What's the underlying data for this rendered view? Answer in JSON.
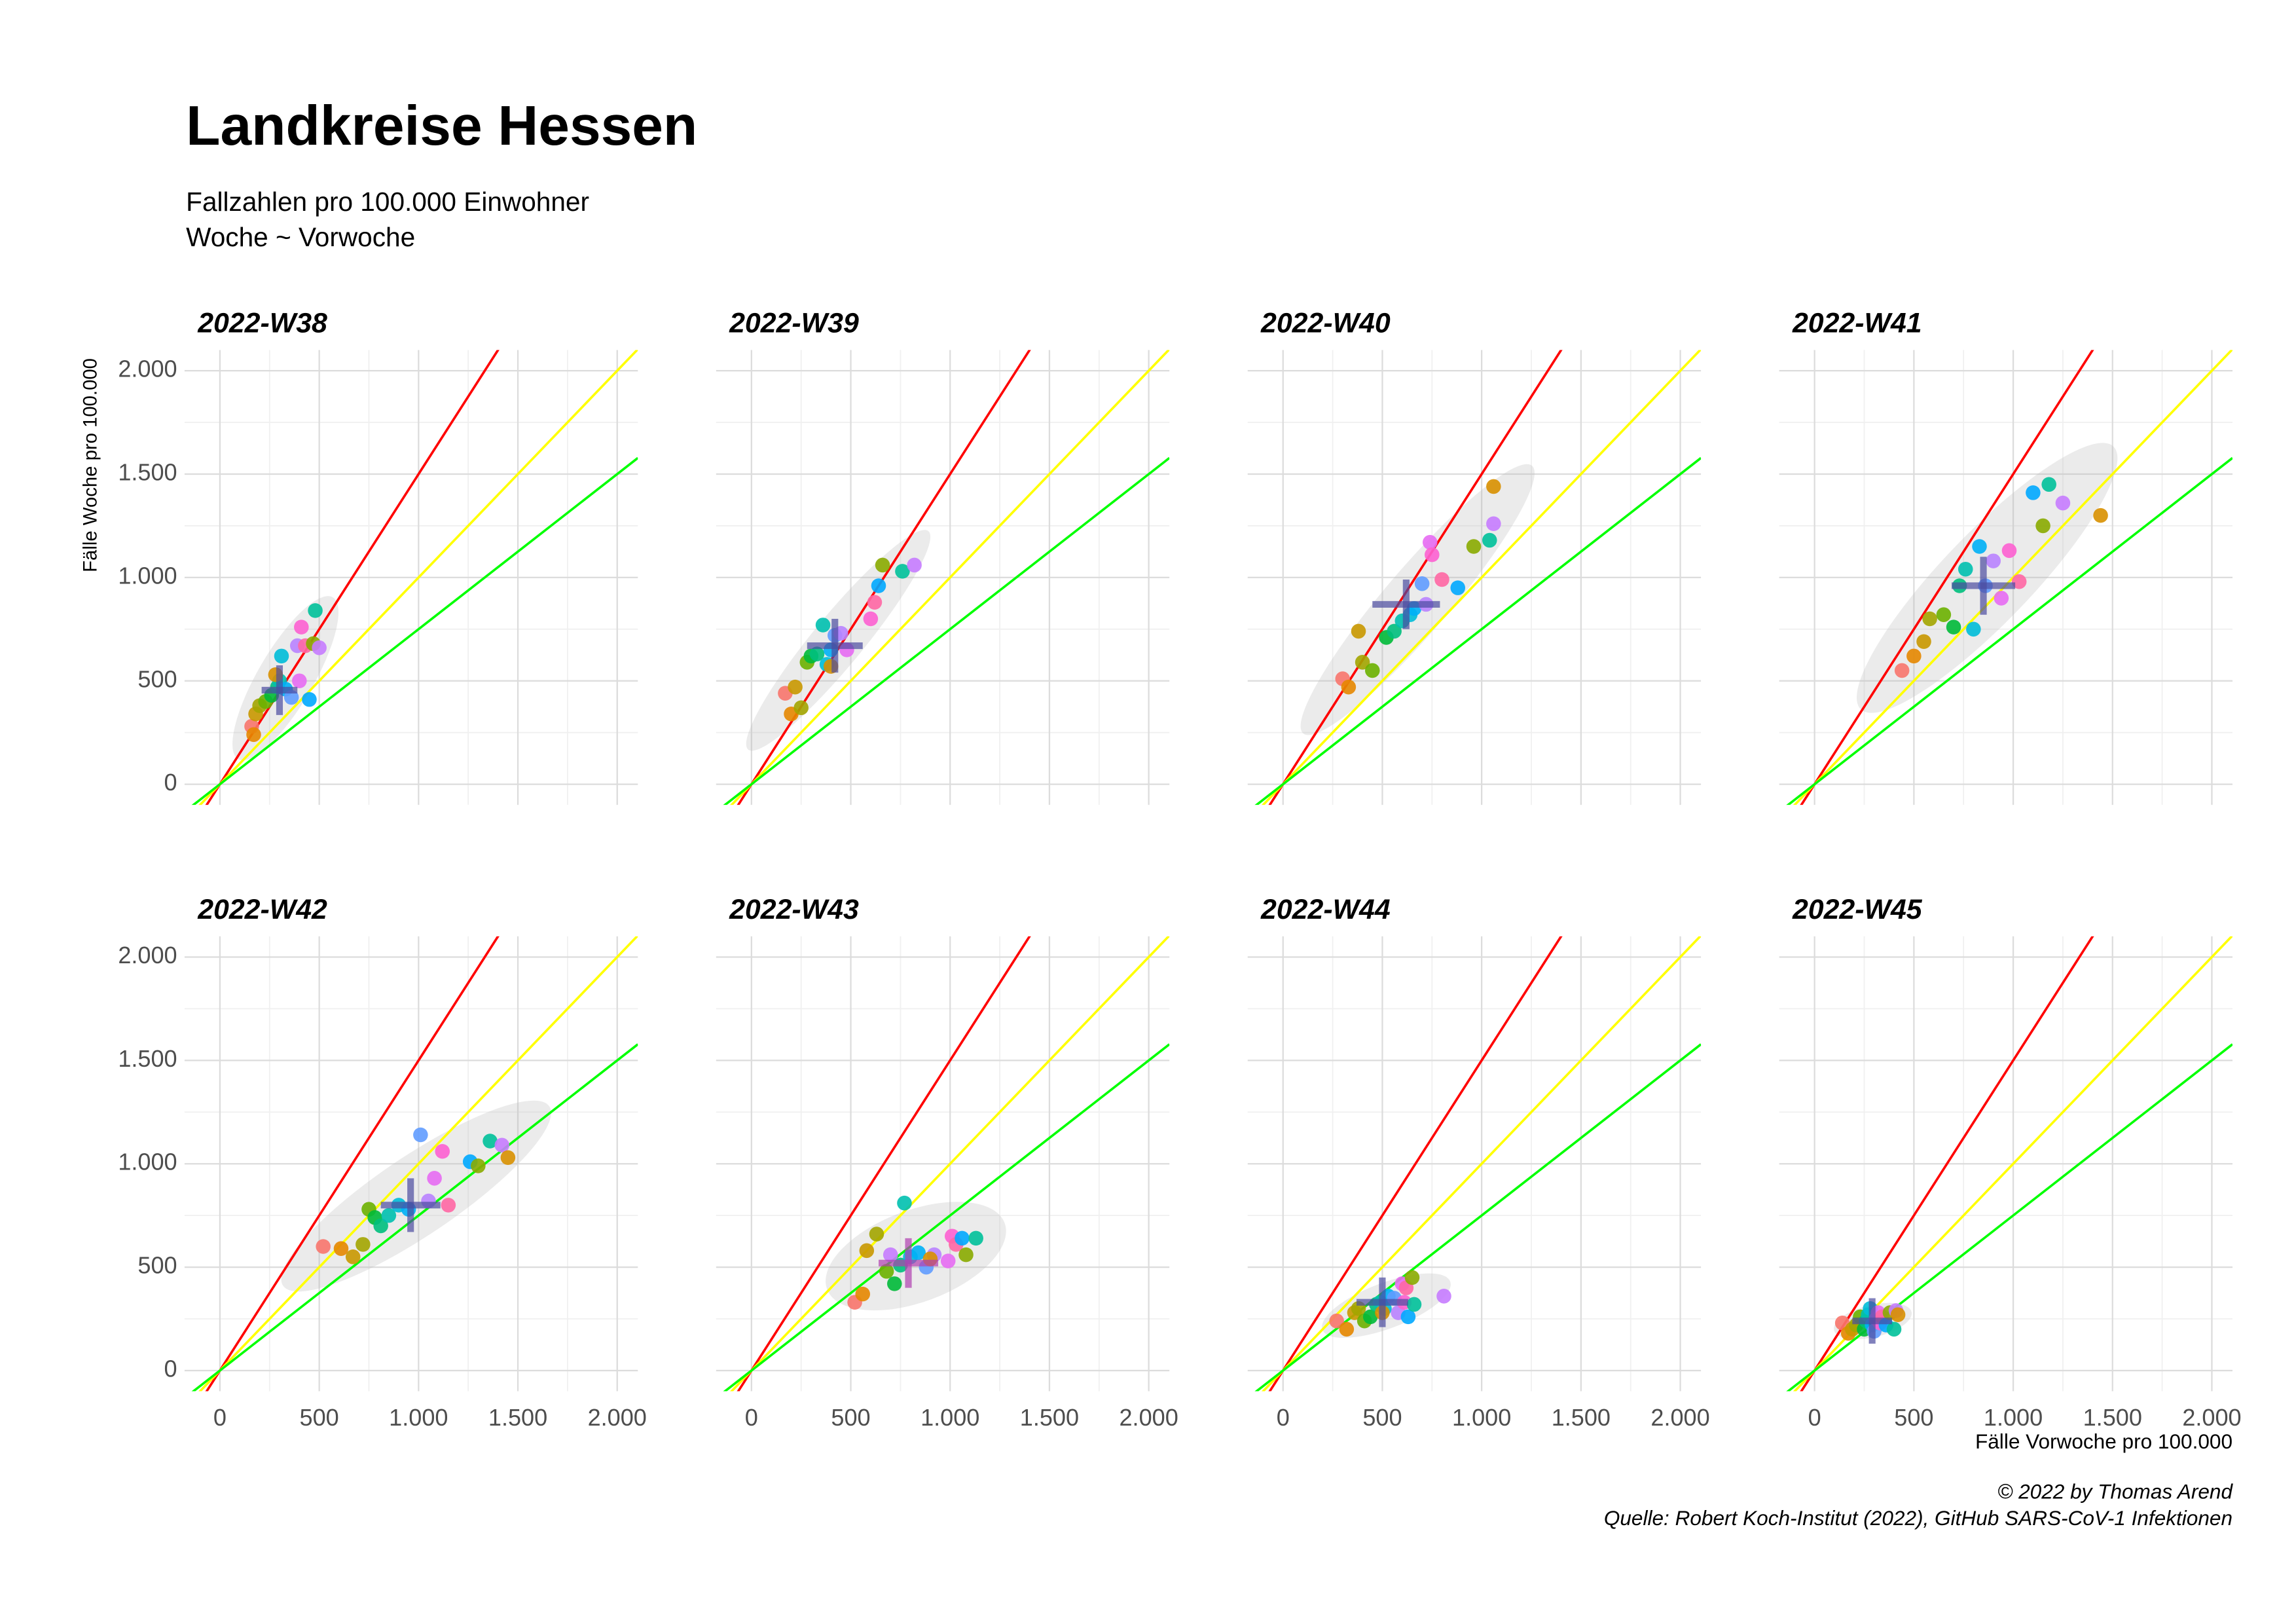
{
  "title": "Landkreise Hessen",
  "subtitle": [
    "Fallzahlen pro 100.000 Einwohner",
    "Woche ~ Vorwoche"
  ],
  "x_label": "Fälle Vorwoche pro 100.000",
  "y_label": "Fälle Woche pro 100.000",
  "caption": [
    "© 2022 by Thomas Arend",
    "Quelle: Robert Koch-Institut (2022), GitHub SARS-CoV-1 Infektionen"
  ],
  "point_colors": [
    "#F8766D",
    "#E58700",
    "#C99800",
    "#A3A500",
    "#6BB100",
    "#00BA38",
    "#00BF7D",
    "#00C0AF",
    "#00BCD8",
    "#00B0F6",
    "#619CFF",
    "#B983FF",
    "#E76BF3",
    "#FD61D1",
    "#FF67A4",
    "#00A9FF",
    "#8AAB00",
    "#00C19A",
    "#C77CFF",
    "#D89000"
  ],
  "chart_data": [
    {
      "type": "scatter",
      "title": "2022-W38",
      "xlim": [
        -178,
        2104
      ],
      "ylim": [
        -100,
        2100
      ],
      "xticks": [
        0,
        500,
        {
          "value": 1000,
          "label": "1.000"
        },
        {
          "value": 1500,
          "label": "1.500"
        },
        {
          "value": 2000,
          "label": "2.000"
        }
      ],
      "yticks": [
        0,
        500,
        {
          "value": 1000,
          "label": "1.000"
        },
        {
          "value": 1500,
          "label": "1.500"
        },
        {
          "value": 2000,
          "label": "2.000"
        }
      ],
      "reference_lines": [
        {
          "slope": 1.5,
          "color": "#ff0000"
        },
        {
          "slope": 1,
          "color": "#ffff00"
        },
        {
          "slope": 0.75,
          "color": "#00ff00"
        }
      ],
      "x": [
        160,
        170,
        180,
        200,
        230,
        260,
        290,
        300,
        310,
        330,
        360,
        390,
        400,
        410,
        430,
        450,
        470,
        480,
        500,
        280
      ],
      "y": [
        280,
        240,
        340,
        380,
        400,
        430,
        470,
        500,
        620,
        460,
        420,
        670,
        500,
        760,
        670,
        410,
        680,
        840,
        660,
        530
      ],
      "mean": {
        "x": 300,
        "y": 455,
        "xerr": 90,
        "yerr": 120,
        "color": "#4b4ba0"
      }
    },
    {
      "type": "scatter",
      "title": "2022-W39",
      "xlim": [
        -178,
        2104
      ],
      "ylim": [
        -100,
        2100
      ],
      "xticks": [
        0,
        500,
        {
          "value": 1000,
          "label": "1.000"
        },
        {
          "value": 1500,
          "label": "1.500"
        },
        {
          "value": 2000,
          "label": "2.000"
        }
      ],
      "yticks": [
        0,
        500,
        {
          "value": 1000,
          "label": "1.000"
        },
        {
          "value": 1500,
          "label": "1.500"
        },
        {
          "value": 2000,
          "label": "2.000"
        }
      ],
      "reference_lines": [
        {
          "slope": 1.5,
          "color": "#ff0000"
        },
        {
          "slope": 1,
          "color": "#ffff00"
        },
        {
          "slope": 0.75,
          "color": "#00ff00"
        }
      ],
      "x": [
        170,
        200,
        220,
        250,
        280,
        300,
        330,
        360,
        380,
        400,
        420,
        450,
        480,
        600,
        620,
        640,
        660,
        760,
        820,
        400
      ],
      "y": [
        440,
        340,
        470,
        370,
        590,
        620,
        630,
        770,
        580,
        650,
        720,
        730,
        650,
        800,
        880,
        960,
        1060,
        1030,
        1060,
        570
      ],
      "mean": {
        "x": 420,
        "y": 670,
        "xerr": 140,
        "yerr": 130,
        "color": "#4b4ba0"
      }
    },
    {
      "type": "scatter",
      "title": "2022-W40",
      "xlim": [
        -178,
        2104
      ],
      "ylim": [
        -100,
        2100
      ],
      "xticks": [
        0,
        500,
        {
          "value": 1000,
          "label": "1.000"
        },
        {
          "value": 1500,
          "label": "1.500"
        },
        {
          "value": 2000,
          "label": "2.000"
        }
      ],
      "yticks": [
        0,
        500,
        {
          "value": 1000,
          "label": "1.000"
        },
        {
          "value": 1500,
          "label": "1.500"
        },
        {
          "value": 2000,
          "label": "2.000"
        }
      ],
      "reference_lines": [
        {
          "slope": 1.5,
          "color": "#ff0000"
        },
        {
          "slope": 1,
          "color": "#ffff00"
        },
        {
          "slope": 0.75,
          "color": "#00ff00"
        }
      ],
      "x": [
        300,
        330,
        380,
        400,
        450,
        520,
        560,
        600,
        640,
        660,
        700,
        720,
        740,
        750,
        800,
        880,
        960,
        1040,
        1060,
        1060
      ],
      "y": [
        510,
        470,
        740,
        590,
        550,
        710,
        740,
        790,
        820,
        850,
        970,
        870,
        1170,
        1110,
        990,
        950,
        1150,
        1180,
        1260,
        1440
      ],
      "mean": {
        "x": 620,
        "y": 870,
        "xerr": 170,
        "yerr": 120,
        "color": "#4b4ba0"
      }
    },
    {
      "type": "scatter",
      "title": "2022-W41",
      "xlim": [
        -178,
        2104
      ],
      "ylim": [
        -100,
        2100
      ],
      "xticks": [
        0,
        500,
        {
          "value": 1000,
          "label": "1.000"
        },
        {
          "value": 1500,
          "label": "1.500"
        },
        {
          "value": 2000,
          "label": "2.000"
        }
      ],
      "yticks": [
        0,
        500,
        {
          "value": 1000,
          "label": "1.000"
        },
        {
          "value": 1500,
          "label": "1.500"
        },
        {
          "value": 2000,
          "label": "2.000"
        }
      ],
      "reference_lines": [
        {
          "slope": 1.5,
          "color": "#ff0000"
        },
        {
          "slope": 1,
          "color": "#ffff00"
        },
        {
          "slope": 0.75,
          "color": "#00ff00"
        }
      ],
      "x": [
        440,
        500,
        550,
        580,
        650,
        700,
        730,
        760,
        800,
        830,
        860,
        900,
        940,
        980,
        1030,
        1100,
        1150,
        1180,
        1250,
        1440
      ],
      "y": [
        550,
        620,
        690,
        800,
        820,
        760,
        960,
        1040,
        750,
        1150,
        960,
        1080,
        900,
        1130,
        980,
        1410,
        1250,
        1450,
        1360,
        1300
      ],
      "mean": {
        "x": 850,
        "y": 960,
        "xerr": 160,
        "yerr": 140,
        "color": "#4b4ba0"
      }
    },
    {
      "type": "scatter",
      "title": "2022-W42",
      "xlim": [
        -178,
        2104
      ],
      "ylim": [
        -100,
        2100
      ],
      "xticks": [
        0,
        500,
        {
          "value": 1000,
          "label": "1.000"
        },
        {
          "value": 1500,
          "label": "1.500"
        },
        {
          "value": 2000,
          "label": "2.000"
        }
      ],
      "yticks": [
        0,
        500,
        {
          "value": 1000,
          "label": "1.000"
        },
        {
          "value": 1500,
          "label": "1.500"
        },
        {
          "value": 2000,
          "label": "2.000"
        }
      ],
      "reference_lines": [
        {
          "slope": 1.5,
          "color": "#ff0000"
        },
        {
          "slope": 1,
          "color": "#ffff00"
        },
        {
          "slope": 0.75,
          "color": "#00ff00"
        }
      ],
      "x": [
        520,
        610,
        670,
        720,
        750,
        780,
        810,
        850,
        900,
        950,
        1010,
        1050,
        1080,
        1120,
        1150,
        1260,
        1300,
        1360,
        1420,
        1450
      ],
      "y": [
        600,
        590,
        550,
        610,
        780,
        740,
        700,
        750,
        800,
        780,
        1140,
        820,
        930,
        1060,
        800,
        1010,
        990,
        1110,
        1090,
        1030
      ],
      "mean": {
        "x": 960,
        "y": 800,
        "xerr": 150,
        "yerr": 130,
        "color": "#4b4ba0"
      }
    },
    {
      "type": "scatter",
      "title": "2022-W43",
      "xlim": [
        -178,
        2104
      ],
      "ylim": [
        -100,
        2100
      ],
      "xticks": [
        0,
        500,
        {
          "value": 1000,
          "label": "1.000"
        },
        {
          "value": 1500,
          "label": "1.500"
        },
        {
          "value": 2000,
          "label": "2.000"
        }
      ],
      "yticks": [
        0,
        500,
        {
          "value": 1000,
          "label": "1.000"
        },
        {
          "value": 1500,
          "label": "1.500"
        },
        {
          "value": 2000,
          "label": "2.000"
        }
      ],
      "reference_lines": [
        {
          "slope": 1.5,
          "color": "#ff0000"
        },
        {
          "slope": 1,
          "color": "#ffff00"
        },
        {
          "slope": 0.75,
          "color": "#00ff00"
        }
      ],
      "x": [
        520,
        560,
        580,
        630,
        680,
        720,
        750,
        770,
        800,
        840,
        880,
        920,
        990,
        1010,
        1030,
        1060,
        1080,
        1130,
        700,
        900
      ],
      "y": [
        330,
        370,
        580,
        660,
        480,
        420,
        510,
        810,
        550,
        570,
        500,
        560,
        530,
        650,
        610,
        640,
        560,
        640,
        560,
        540
      ],
      "mean": {
        "x": 790,
        "y": 520,
        "xerr": 150,
        "yerr": 120,
        "color": "#b03fb0"
      }
    },
    {
      "type": "scatter",
      "title": "2022-W44",
      "xlim": [
        -178,
        2104
      ],
      "ylim": [
        -100,
        2100
      ],
      "xticks": [
        0,
        500,
        {
          "value": 1000,
          "label": "1.000"
        },
        {
          "value": 1500,
          "label": "1.500"
        },
        {
          "value": 2000,
          "label": "2.000"
        }
      ],
      "yticks": [
        0,
        500,
        {
          "value": 1000,
          "label": "1.000"
        },
        {
          "value": 1500,
          "label": "1.500"
        },
        {
          "value": 2000,
          "label": "2.000"
        }
      ],
      "reference_lines": [
        {
          "slope": 1.5,
          "color": "#ff0000"
        },
        {
          "slope": 1,
          "color": "#ffff00"
        },
        {
          "slope": 0.75,
          "color": "#00ff00"
        }
      ],
      "x": [
        270,
        320,
        360,
        380,
        410,
        440,
        470,
        490,
        510,
        530,
        560,
        580,
        600,
        610,
        620,
        630,
        650,
        660,
        810,
        500
      ],
      "y": [
        240,
        200,
        280,
        300,
        240,
        260,
        320,
        330,
        300,
        360,
        350,
        280,
        420,
        330,
        400,
        260,
        450,
        320,
        360,
        280
      ],
      "mean": {
        "x": 500,
        "y": 330,
        "xerr": 130,
        "yerr": 120,
        "color": "#4b4ba0"
      }
    },
    {
      "type": "scatter",
      "title": "2022-W45",
      "xlim": [
        -178,
        2104
      ],
      "ylim": [
        -100,
        2100
      ],
      "xticks": [
        0,
        500,
        {
          "value": 1000,
          "label": "1.000"
        },
        {
          "value": 1500,
          "label": "1.500"
        },
        {
          "value": 2000,
          "label": "2.000"
        }
      ],
      "yticks": [
        0,
        500,
        {
          "value": 1000,
          "label": "1.000"
        },
        {
          "value": 1500,
          "label": "1.500"
        },
        {
          "value": 2000,
          "label": "2.000"
        }
      ],
      "reference_lines": [
        {
          "slope": 1.5,
          "color": "#ff0000"
        },
        {
          "slope": 1,
          "color": "#ffff00"
        },
        {
          "slope": 0.75,
          "color": "#00ff00"
        }
      ],
      "x": [
        140,
        170,
        190,
        210,
        230,
        250,
        260,
        270,
        280,
        290,
        300,
        310,
        320,
        330,
        340,
        360,
        380,
        400,
        410,
        420
      ],
      "y": [
        230,
        180,
        200,
        220,
        260,
        200,
        240,
        270,
        300,
        220,
        190,
        250,
        280,
        230,
        260,
        220,
        280,
        200,
        290,
        270
      ],
      "mean": {
        "x": 290,
        "y": 240,
        "xerr": 100,
        "yerr": 110,
        "color": "#4b4ba0"
      }
    }
  ]
}
